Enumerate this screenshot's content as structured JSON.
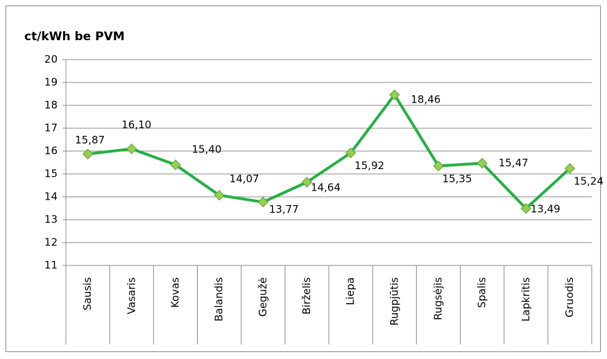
{
  "chart_data": {
    "type": "line",
    "title": "ct/kWh be PVM",
    "categories": [
      "Sausis",
      "Vasaris",
      "Kovas",
      "Balandis",
      "Gegužė",
      "Birželis",
      "Liepa",
      "Rugpjūtis",
      "Rugsėjis",
      "Spalis",
      "Lapkritis",
      "Gruodis"
    ],
    "series": [
      {
        "name": "ct/kWh be PVM",
        "color": "#23b043",
        "marker_color": "#92d050",
        "values": [
          15.87,
          16.1,
          15.4,
          14.07,
          13.77,
          14.64,
          15.92,
          18.46,
          15.35,
          15.47,
          13.49,
          15.24
        ],
        "value_labels": [
          "15,87",
          "16,10",
          "15,40",
          "14,07",
          "13,77",
          "14,64",
          "15,92",
          "18,46",
          "15,35",
          "15,47",
          "13,49",
          "15,24"
        ]
      }
    ],
    "ylim": [
      11,
      20
    ],
    "yticks": [
      11,
      12,
      13,
      14,
      15,
      16,
      17,
      18,
      19,
      20
    ],
    "grid": true,
    "legend": false
  }
}
